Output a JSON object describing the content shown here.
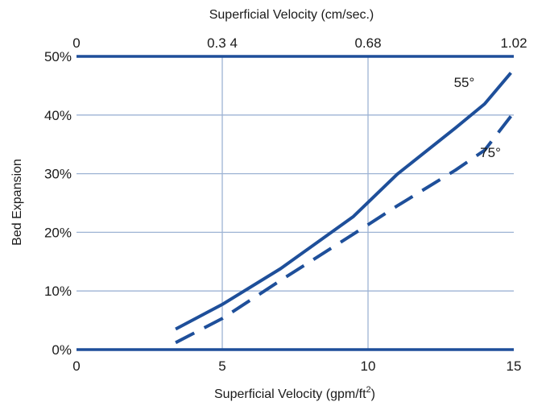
{
  "chart_data": {
    "type": "line",
    "title": "",
    "xlabel": "Superficial Velocity (gpm/ft",
    "xlabel_sup": "2",
    "xlabel_close": ")",
    "x2label": "Superficial Velocity (cm/sec.)",
    "ylabel": "Bed Expansion",
    "xlim": [
      0,
      15
    ],
    "ylim": [
      0,
      50
    ],
    "x_ticks": [
      {
        "value": 0,
        "label": "0"
      },
      {
        "value": 5,
        "label": "5"
      },
      {
        "value": 10,
        "label": "10"
      },
      {
        "value": 15,
        "label": "15"
      }
    ],
    "x2_ticks": [
      {
        "value": 0,
        "label": "0"
      },
      {
        "value": 5,
        "label": "0.3 4"
      },
      {
        "value": 10,
        "label": "0.68"
      },
      {
        "value": 15,
        "label": "1.02"
      }
    ],
    "y_ticks": [
      {
        "value": 0,
        "label": "0%"
      },
      {
        "value": 10,
        "label": "10%"
      },
      {
        "value": 20,
        "label": "20%"
      },
      {
        "value": 30,
        "label": "30%"
      },
      {
        "value": 40,
        "label": "40%"
      },
      {
        "value": 50,
        "label": "50%"
      }
    ],
    "grid": true,
    "series": [
      {
        "name": "55°",
        "style": "solid",
        "label_at": [
          13.3,
          44.8
        ],
        "points": [
          [
            3.4,
            3.5
          ],
          [
            5.0,
            7.7
          ],
          [
            7.0,
            13.8
          ],
          [
            9.5,
            22.7
          ],
          [
            11.0,
            29.9
          ],
          [
            13.0,
            37.8
          ],
          [
            14.0,
            41.9
          ],
          [
            14.9,
            47.2
          ]
        ]
      },
      {
        "name": "75°",
        "style": "dashed",
        "label_at": [
          14.2,
          32.8
        ],
        "points": [
          [
            3.4,
            1.2
          ],
          [
            5.0,
            5.3
          ],
          [
            7.0,
            11.8
          ],
          [
            9.5,
            19.7
          ],
          [
            11.0,
            24.5
          ],
          [
            13.0,
            30.6
          ],
          [
            14.0,
            34.0
          ],
          [
            14.9,
            39.8
          ]
        ]
      }
    ],
    "colors": {
      "curve": "#1e4f9a",
      "axis": "#1e4f9a",
      "grid": "#9db3d4"
    }
  }
}
